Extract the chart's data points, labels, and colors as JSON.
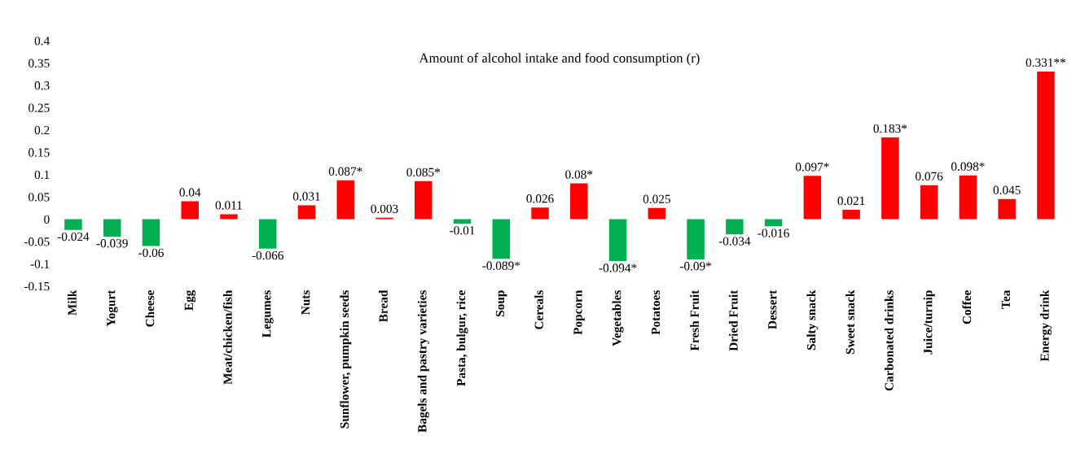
{
  "chart_data": {
    "type": "bar",
    "title": "Amount of alcohol intake and food consumption (r)",
    "categories": [
      "Milk",
      "Yogurt",
      "Cheese",
      "Egg",
      "Meat/chicken/fish",
      "Legumes",
      "Nuts",
      "Sunflower, pumpkin seeds",
      "Bread",
      "Bagels and pastry varieties",
      "Pasta, bulgur, rice",
      "Soup",
      "Cereals",
      "Popcorn",
      "Vegetables",
      "Potatoes",
      "Fresh Fruit",
      "Dried Fruit",
      "Dessert",
      "Salty snack",
      "Sweet snack",
      "Carbonated drinks",
      "Juice/turnip",
      "Coffee",
      "Tea",
      "Energy drink"
    ],
    "values": [
      -0.024,
      -0.039,
      -0.06,
      0.04,
      0.011,
      -0.066,
      0.031,
      0.087,
      0.003,
      0.085,
      -0.01,
      -0.089,
      0.026,
      0.08,
      -0.094,
      0.025,
      -0.09,
      -0.034,
      -0.016,
      0.097,
      0.021,
      0.183,
      0.076,
      0.098,
      0.045,
      0.331
    ],
    "value_labels": [
      "-0.024",
      "-0.039",
      "-0.06",
      "0.04",
      "0.011",
      "-0.066",
      "0.031",
      "0.087*",
      "0.003",
      "0.085*",
      "-0.01",
      "-0.089*",
      "0.026",
      "0.08*",
      "-0.094*",
      "0.025",
      "-0.09*",
      "-0.034",
      "-0.016",
      "0.097*",
      "0.021",
      "0.183*",
      "0.076",
      "0.098*",
      "0.045",
      "0.331**"
    ],
    "colors": [
      "#00b050",
      "#00b050",
      "#00b050",
      "#ff0000",
      "#ff0000",
      "#00b050",
      "#ff0000",
      "#ff0000",
      "#ff0000",
      "#ff0000",
      "#00b050",
      "#00b050",
      "#ff0000",
      "#ff0000",
      "#00b050",
      "#ff0000",
      "#00b050",
      "#00b050",
      "#00b050",
      "#ff0000",
      "#ff0000",
      "#ff0000",
      "#ff0000",
      "#ff0000",
      "#ff0000",
      "#ff0000"
    ],
    "ylim": [
      -0.15,
      0.4
    ],
    "yticks": [
      -0.15,
      -0.1,
      -0.05,
      0,
      0.05,
      0.1,
      0.15,
      0.2,
      0.25,
      0.3,
      0.35,
      0.4
    ],
    "grid": false,
    "legend": false
  }
}
